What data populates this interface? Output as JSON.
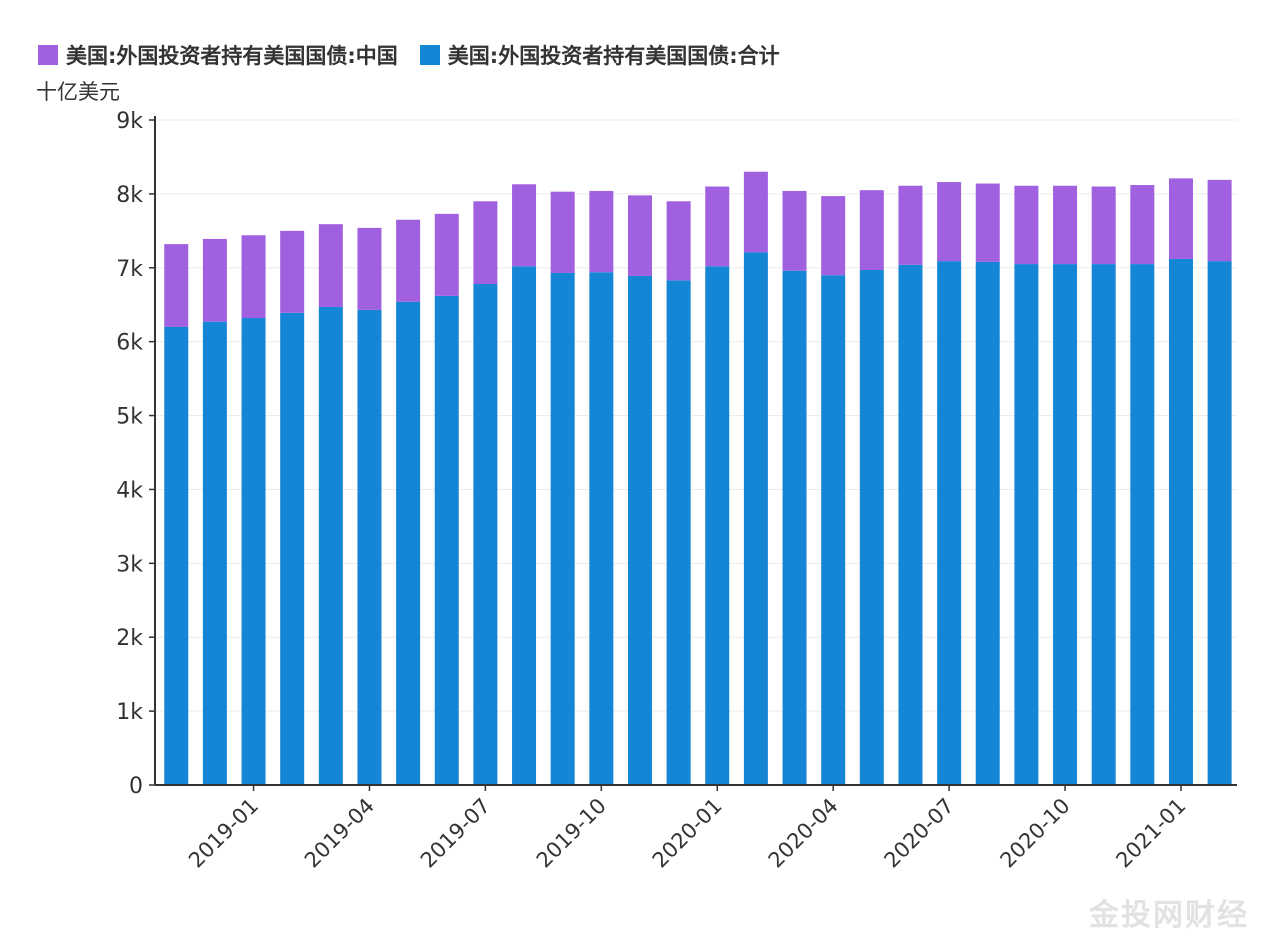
{
  "chart_data": {
    "type": "bar",
    "stacked": true,
    "title": "",
    "ylabel": "十亿美元",
    "xlabel": "",
    "ylim": [
      0,
      9000
    ],
    "yticks": [
      "0",
      "1k",
      "2k",
      "3k",
      "4k",
      "5k",
      "6k",
      "7k",
      "8k",
      "9k"
    ],
    "grid": true,
    "legend_position": "top-left",
    "categories": [
      "2018-11",
      "2018-12",
      "2019-01",
      "2019-02",
      "2019-03",
      "2019-04",
      "2019-05",
      "2019-06",
      "2019-07",
      "2019-08",
      "2019-09",
      "2019-10",
      "2019-11",
      "2019-12",
      "2020-01",
      "2020-02",
      "2020-03",
      "2020-04",
      "2020-05",
      "2020-06",
      "2020-07",
      "2020-08",
      "2020-09",
      "2020-10",
      "2020-11",
      "2020-12",
      "2021-01",
      "2021-02"
    ],
    "xtick_labels": [
      "2019-01",
      "2019-04",
      "2019-07",
      "2019-10",
      "2020-01",
      "2020-04",
      "2020-07",
      "2020-10",
      "2021-01"
    ],
    "series": [
      {
        "name": "美国:外国投资者持有美国国债:合计",
        "color": "#1585d6",
        "values": [
          6200,
          6270,
          6320,
          6390,
          6470,
          6430,
          6540,
          6620,
          6780,
          7020,
          6930,
          6940,
          6890,
          6830,
          7020,
          7210,
          6960,
          6900,
          6970,
          7040,
          7090,
          7080,
          7050,
          7050,
          7050,
          7050,
          7120,
          7090
        ]
      },
      {
        "name": "美国:外国投资者持有美国国债:中国",
        "color": "#a060e0",
        "values": [
          1120,
          1120,
          1120,
          1110,
          1120,
          1110,
          1110,
          1110,
          1120,
          1110,
          1100,
          1100,
          1090,
          1070,
          1080,
          1090,
          1080,
          1070,
          1080,
          1070,
          1070,
          1060,
          1060,
          1060,
          1050,
          1070,
          1090,
          1100
        ]
      }
    ]
  },
  "watermark": "金投网财经"
}
